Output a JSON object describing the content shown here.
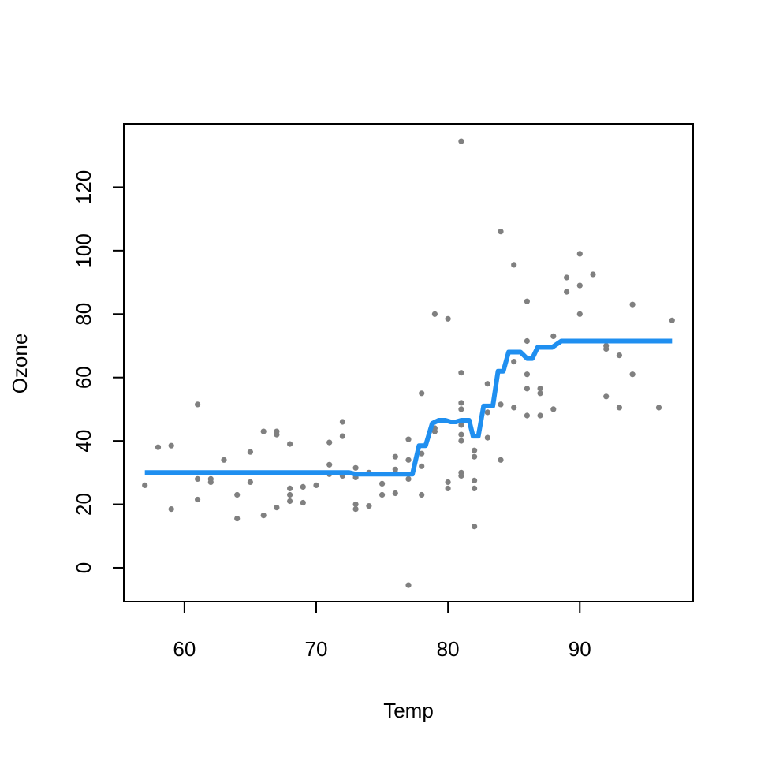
{
  "chart_data": {
    "type": "scatter",
    "title": "",
    "xlabel": "Temp",
    "ylabel": "Ozone",
    "xlim": [
      55.4,
      98.6
    ],
    "ylim": [
      -10.7,
      140
    ],
    "xticks": [
      60,
      70,
      80,
      90
    ],
    "yticks": [
      0,
      20,
      40,
      60,
      80,
      100,
      120
    ],
    "grid": false,
    "legend": "none",
    "point_color": "#808080",
    "line_color": "#1f8ff0",
    "points": [
      [
        57,
        26
      ],
      [
        58,
        38
      ],
      [
        59,
        38.5
      ],
      [
        59,
        18.5
      ],
      [
        61,
        51.5
      ],
      [
        61,
        28
      ],
      [
        61,
        21.5
      ],
      [
        62,
        28
      ],
      [
        62,
        27
      ],
      [
        63,
        34
      ],
      [
        64,
        15.5
      ],
      [
        64,
        23
      ],
      [
        65,
        36.5
      ],
      [
        65,
        27
      ],
      [
        66,
        43
      ],
      [
        66,
        16.5
      ],
      [
        67,
        43
      ],
      [
        67,
        42
      ],
      [
        67,
        19
      ],
      [
        68,
        39
      ],
      [
        68,
        25
      ],
      [
        68,
        23
      ],
      [
        68,
        21
      ],
      [
        69,
        25.5
      ],
      [
        69,
        20.5
      ],
      [
        70,
        26
      ],
      [
        71,
        39.5
      ],
      [
        71,
        32.5
      ],
      [
        71,
        29.5
      ],
      [
        72,
        46
      ],
      [
        72,
        41.5
      ],
      [
        72,
        29
      ],
      [
        73,
        31.5
      ],
      [
        73,
        28.5
      ],
      [
        73,
        20
      ],
      [
        73,
        18.5
      ],
      [
        74,
        30
      ],
      [
        74,
        19.5
      ],
      [
        75,
        26.5
      ],
      [
        75,
        23
      ],
      [
        76,
        35
      ],
      [
        76,
        31
      ],
      [
        76,
        30
      ],
      [
        76,
        23.5
      ],
      [
        77,
        40.5
      ],
      [
        77,
        34
      ],
      [
        77,
        28
      ],
      [
        77,
        -5.5
      ],
      [
        78,
        55
      ],
      [
        78,
        36
      ],
      [
        78,
        32
      ],
      [
        78,
        23
      ],
      [
        79,
        80
      ],
      [
        79,
        44
      ],
      [
        79,
        43
      ],
      [
        80,
        78.5
      ],
      [
        80,
        27
      ],
      [
        80,
        25
      ],
      [
        81,
        134.5
      ],
      [
        81,
        61.5
      ],
      [
        81,
        52
      ],
      [
        81,
        50
      ],
      [
        81,
        45
      ],
      [
        81,
        42
      ],
      [
        81,
        40
      ],
      [
        81,
        30
      ],
      [
        81,
        29
      ],
      [
        82,
        37
      ],
      [
        82,
        35
      ],
      [
        82,
        27.5
      ],
      [
        82,
        25
      ],
      [
        82,
        13
      ],
      [
        83,
        58
      ],
      [
        83,
        49
      ],
      [
        83,
        41
      ],
      [
        84,
        106
      ],
      [
        84,
        51.5
      ],
      [
        84,
        34
      ],
      [
        85,
        95.5
      ],
      [
        85,
        65
      ],
      [
        85,
        50.5
      ],
      [
        86,
        84
      ],
      [
        86,
        71.5
      ],
      [
        86,
        61
      ],
      [
        86,
        56.5
      ],
      [
        86,
        48
      ],
      [
        87,
        56.5
      ],
      [
        87,
        55
      ],
      [
        87,
        48
      ],
      [
        88,
        73
      ],
      [
        88,
        50
      ],
      [
        89,
        91.5
      ],
      [
        89,
        87
      ],
      [
        90,
        99
      ],
      [
        90,
        89
      ],
      [
        90,
        80
      ],
      [
        91,
        92.5
      ],
      [
        92,
        70
      ],
      [
        92,
        69
      ],
      [
        92,
        54
      ],
      [
        93,
        67
      ],
      [
        93,
        50.5
      ],
      [
        94,
        83
      ],
      [
        94,
        61
      ],
      [
        96,
        50.5
      ],
      [
        97,
        78
      ]
    ],
    "fit_line": [
      [
        57,
        30
      ],
      [
        72.5,
        30
      ],
      [
        73,
        29.5
      ],
      [
        77.3,
        29.5
      ],
      [
        77.8,
        38.5
      ],
      [
        78.3,
        38.5
      ],
      [
        78.8,
        45.5
      ],
      [
        79.3,
        46.5
      ],
      [
        79.8,
        46.5
      ],
      [
        80.2,
        46
      ],
      [
        80.6,
        46
      ],
      [
        81,
        46.5
      ],
      [
        81.6,
        46.5
      ],
      [
        81.9,
        41.5
      ],
      [
        82.3,
        41.5
      ],
      [
        82.7,
        51
      ],
      [
        83.4,
        51
      ],
      [
        83.8,
        62
      ],
      [
        84.2,
        62
      ],
      [
        84.6,
        68
      ],
      [
        85.5,
        68
      ],
      [
        86,
        66
      ],
      [
        86.4,
        66
      ],
      [
        86.8,
        69.5
      ],
      [
        87.9,
        69.5
      ],
      [
        88.6,
        71.5
      ],
      [
        97,
        71.5
      ]
    ]
  }
}
